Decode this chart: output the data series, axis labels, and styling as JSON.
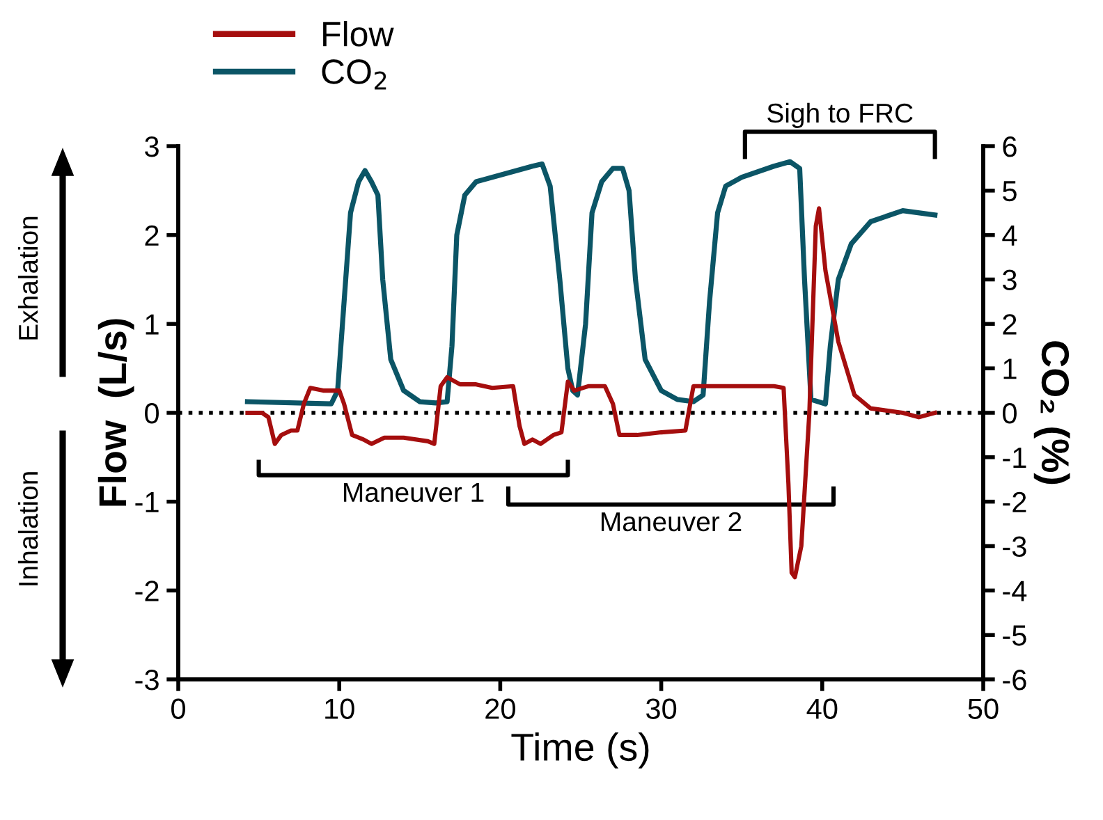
{
  "chart_data": {
    "type": "line",
    "xlabel": "Time (s)",
    "ylabel": "Flow  (L/s)",
    "y2label": "CO₂ (%)",
    "series": [
      {
        "name": "Flow",
        "color": "#a50e0e",
        "axis": "y",
        "x": [
          4.3,
          5.2,
          5.6,
          6.0,
          6.4,
          7,
          7.4,
          7.8,
          8.2,
          9,
          10,
          10.3,
          10.8,
          11.5,
          12,
          12.8,
          14,
          15.5,
          15.9,
          16.3,
          16.7,
          17.5,
          18.5,
          19,
          19.5,
          20.8,
          21.2,
          21.5,
          22,
          22.5,
          23.3,
          23.8,
          24.2,
          24.6,
          25.5,
          26.5,
          27,
          27.4,
          28.5,
          30,
          31.5,
          32.0,
          33,
          35,
          37,
          37.6,
          37.9,
          38.1,
          38.3,
          38.7,
          39.2,
          39.6,
          39.8,
          40.2,
          41,
          42,
          43,
          45,
          46,
          47
        ],
        "values": [
          0.0,
          0.0,
          -0.05,
          -0.35,
          -0.25,
          -0.2,
          -0.2,
          0.1,
          0.28,
          0.25,
          0.25,
          0.1,
          -0.25,
          -0.3,
          -0.35,
          -0.28,
          -0.28,
          -0.32,
          -0.35,
          0.3,
          0.4,
          0.32,
          0.32,
          0.3,
          0.28,
          0.3,
          -0.15,
          -0.35,
          -0.3,
          -0.35,
          -0.25,
          -0.22,
          0.35,
          0.25,
          0.3,
          0.3,
          0.1,
          -0.25,
          -0.25,
          -0.22,
          -0.2,
          0.3,
          0.3,
          0.3,
          0.3,
          0.28,
          -0.8,
          -1.8,
          -1.85,
          -1.5,
          0.0,
          2.1,
          2.3,
          1.6,
          0.8,
          0.2,
          0.05,
          0.0,
          -0.05,
          0.0
        ]
      },
      {
        "name": "CO$_{2}$",
        "color": "#0b5566",
        "axis": "y2",
        "x": [
          4.3,
          9.5,
          9.9,
          10.3,
          10.7,
          11.2,
          11.6,
          12.0,
          12.4,
          12.7,
          13.2,
          14,
          15,
          16,
          16.7,
          17.0,
          17.3,
          17.8,
          18.5,
          20,
          22,
          22.6,
          23.1,
          23.7,
          24.2,
          24.5,
          24.8,
          25.3,
          25.7,
          26.3,
          27,
          27.6,
          28,
          28.4,
          29,
          30,
          31,
          32,
          32.6,
          33.0,
          33.5,
          34,
          35,
          37,
          38,
          38.6,
          38.9,
          39.3,
          40.2,
          40.5,
          41,
          41.8,
          43,
          45,
          47
        ],
        "values": [
          0.25,
          0.2,
          0.5,
          2.5,
          4.5,
          5.2,
          5.45,
          5.2,
          4.9,
          3,
          1.2,
          0.5,
          0.25,
          0.22,
          0.25,
          1.5,
          4,
          4.9,
          5.2,
          5.35,
          5.55,
          5.6,
          5.1,
          3,
          1,
          0.5,
          0.4,
          2,
          4.5,
          5.2,
          5.5,
          5.5,
          5,
          3,
          1.2,
          0.5,
          0.3,
          0.25,
          0.4,
          2.5,
          4.5,
          5.1,
          5.3,
          5.55,
          5.65,
          5.5,
          3,
          0.3,
          0.2,
          1.5,
          3,
          3.8,
          4.3,
          4.55,
          4.45
        ]
      }
    ],
    "xlim": [
      0,
      50
    ],
    "xticks": [
      0,
      10,
      20,
      30,
      40,
      50
    ],
    "ylim": [
      -3,
      3
    ],
    "yticks": [
      -3,
      -2,
      -1,
      0,
      1,
      2,
      3
    ],
    "y2lim": [
      -6,
      6
    ],
    "y2ticks": [
      -6,
      -5,
      -4,
      -3,
      -2,
      -1,
      0,
      1,
      2,
      3,
      4,
      5,
      6
    ],
    "ref_lines": [
      {
        "axis": "y",
        "value": 0,
        "color": "#000000",
        "line_style": "dotted"
      }
    ],
    "annotations": [
      "Exhalation",
      "Inhalation",
      "Maneuver 1",
      "Maneuver 2",
      "Sigh to FRC"
    ],
    "legend": "top left",
    "grid": false,
    "marker": "none",
    "line_style": "solid"
  }
}
